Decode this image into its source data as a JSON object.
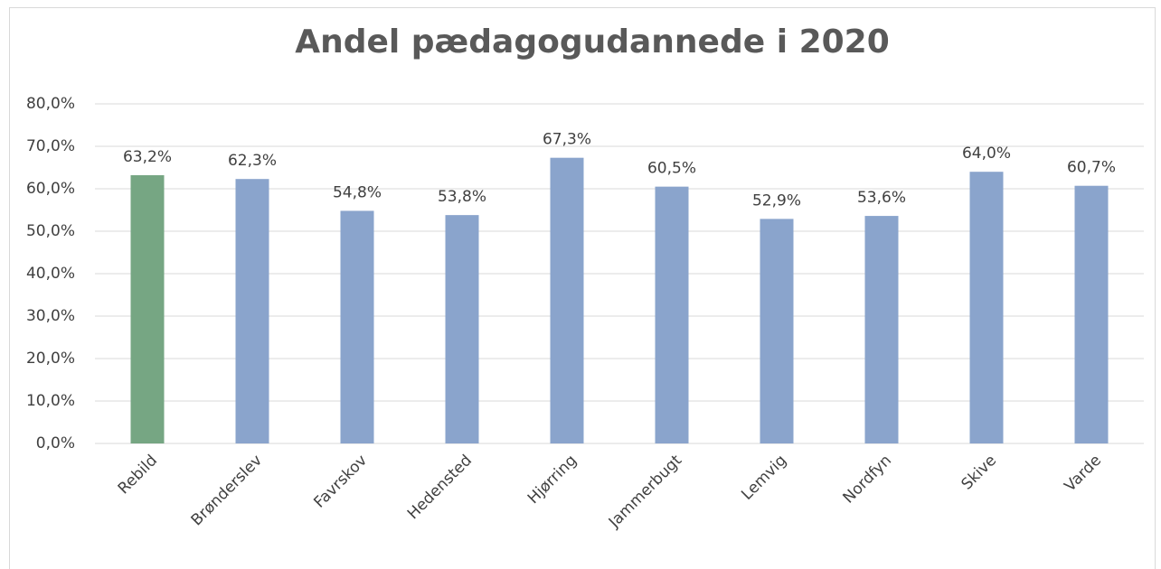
{
  "chart_data": {
    "type": "bar",
    "title": "Andel pædagogudannede i 2020",
    "categories": [
      "Rebild",
      "Brønderslev",
      "Favrskov",
      "Hedensted",
      "Hjørring",
      "Jammerbugt",
      "Lemvig",
      "Nordfyn",
      "Skive",
      "Varde"
    ],
    "values": [
      63.2,
      62.3,
      54.8,
      53.8,
      67.3,
      60.5,
      52.9,
      53.6,
      64.0,
      60.7
    ],
    "value_labels": [
      "63,2%",
      "62,3%",
      "54,8%",
      "53,8%",
      "67,3%",
      "60,5%",
      "52,9%",
      "53,6%",
      "64,0%",
      "60,7%"
    ],
    "colors": [
      "#76a683",
      "#8aa4cc",
      "#8aa4cc",
      "#8aa4cc",
      "#8aa4cc",
      "#8aa4cc",
      "#8aa4cc",
      "#8aa4cc",
      "#8aa4cc",
      "#8aa4cc"
    ],
    "ylim": [
      0,
      80
    ],
    "yticks": [
      {
        "value": 0,
        "label": "0,0%"
      },
      {
        "value": 10,
        "label": "10,0%"
      },
      {
        "value": 20,
        "label": "20,0%"
      },
      {
        "value": 30,
        "label": "30,0%"
      },
      {
        "value": 40,
        "label": "40,0%"
      },
      {
        "value": 50,
        "label": "50,0%"
      },
      {
        "value": 60,
        "label": "60,0%"
      },
      {
        "value": 70,
        "label": "70,0%"
      },
      {
        "value": 80,
        "label": "80,0%"
      }
    ],
    "grid": true
  }
}
